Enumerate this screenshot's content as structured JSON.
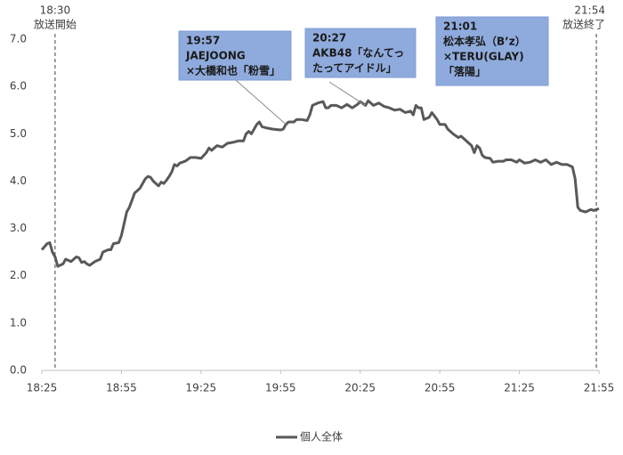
{
  "chart_data": {
    "type": "line",
    "x": [
      "18:25",
      "18:27",
      "18:28",
      "18:29",
      "18:30",
      "18:31",
      "18:33",
      "18:34",
      "18:36",
      "18:38",
      "18:39",
      "18:40",
      "18:41",
      "18:42",
      "18:43",
      "18:45",
      "18:47",
      "18:48",
      "18:50",
      "18:51",
      "18:52",
      "18:54",
      "18:55",
      "18:56",
      "18:57",
      "18:58",
      "18:59",
      "19:00",
      "19:01",
      "19:02",
      "19:04",
      "19:05",
      "19:06",
      "19:07",
      "19:08",
      "19:09",
      "19:10",
      "19:11",
      "19:12",
      "19:13",
      "19:14",
      "19:15",
      "19:16",
      "19:17",
      "19:19",
      "19:21",
      "19:23",
      "19:25",
      "19:27",
      "19:28",
      "19:29",
      "19:31",
      "19:33",
      "19:35",
      "19:37",
      "19:39",
      "19:41",
      "19:42",
      "19:43",
      "19:44",
      "19:45",
      "19:46",
      "19:47",
      "19:48",
      "19:50",
      "19:52",
      "19:55",
      "19:56",
      "19:57",
      "19:58",
      "20:00",
      "20:01",
      "20:03",
      "20:05",
      "20:06",
      "20:07",
      "20:09",
      "20:11",
      "20:12",
      "20:13",
      "20:14",
      "20:16",
      "20:18",
      "20:20",
      "20:22",
      "20:24",
      "20:25",
      "20:27",
      "20:28",
      "20:30",
      "20:32",
      "20:34",
      "20:36",
      "20:38",
      "20:40",
      "20:42",
      "20:44",
      "20:45",
      "20:46",
      "20:47",
      "20:48",
      "20:49",
      "20:51",
      "20:52",
      "20:54",
      "20:55",
      "20:57",
      "20:58",
      "21:00",
      "21:02",
      "21:03",
      "21:05",
      "21:07",
      "21:08",
      "21:09",
      "21:10",
      "21:11",
      "21:12",
      "21:14",
      "21:15",
      "21:17",
      "21:19",
      "21:20",
      "21:22",
      "21:24",
      "21:25",
      "21:27",
      "21:29",
      "21:31",
      "21:33",
      "21:35",
      "21:37",
      "21:39",
      "21:41",
      "21:43",
      "21:45",
      "21:46",
      "21:47",
      "21:48",
      "21:50",
      "21:52",
      "21:53",
      "21:55"
    ],
    "series": [
      {
        "name": "個人全体",
        "color": "#595959",
        "values": [
          2.55,
          2.68,
          2.7,
          2.5,
          2.4,
          2.2,
          2.25,
          2.35,
          2.3,
          2.4,
          2.38,
          2.28,
          2.3,
          2.25,
          2.22,
          2.3,
          2.35,
          2.5,
          2.55,
          2.55,
          2.68,
          2.7,
          2.85,
          3.1,
          3.35,
          3.45,
          3.6,
          3.75,
          3.8,
          3.85,
          4.05,
          4.1,
          4.08,
          4.0,
          3.95,
          3.9,
          3.98,
          3.95,
          4.02,
          4.1,
          4.2,
          4.35,
          4.32,
          4.38,
          4.42,
          4.5,
          4.5,
          4.48,
          4.6,
          4.7,
          4.65,
          4.75,
          4.72,
          4.8,
          4.82,
          4.85,
          4.85,
          5.0,
          5.05,
          5.0,
          5.1,
          5.2,
          5.25,
          5.15,
          5.12,
          5.1,
          5.08,
          5.1,
          5.2,
          5.25,
          5.25,
          5.3,
          5.3,
          5.28,
          5.4,
          5.6,
          5.65,
          5.68,
          5.55,
          5.55,
          5.6,
          5.6,
          5.55,
          5.62,
          5.55,
          5.62,
          5.68,
          5.6,
          5.7,
          5.6,
          5.65,
          5.58,
          5.55,
          5.5,
          5.52,
          5.45,
          5.48,
          5.4,
          5.6,
          5.55,
          5.55,
          5.3,
          5.35,
          5.45,
          5.3,
          5.2,
          5.2,
          5.1,
          5.0,
          4.92,
          4.95,
          4.85,
          4.75,
          4.6,
          4.75,
          4.7,
          4.55,
          4.5,
          4.48,
          4.4,
          4.42,
          4.42,
          4.45,
          4.45,
          4.4,
          4.45,
          4.38,
          4.4,
          4.45,
          4.4,
          4.45,
          4.35,
          4.4,
          4.35,
          4.35,
          4.3,
          4.05,
          3.45,
          3.38,
          3.35,
          3.4,
          3.38,
          3.42
        ]
      }
    ],
    "xlim": [
      "18:25",
      "21:55"
    ],
    "xticks": [
      "18:25",
      "18:55",
      "19:25",
      "19:55",
      "20:25",
      "20:55",
      "21:25",
      "21:55"
    ],
    "ylim": [
      0,
      7
    ],
    "yticks": [
      {
        "value": 0,
        "label": "0.0"
      },
      {
        "value": 1,
        "label": "1.0"
      },
      {
        "value": 2,
        "label": "2.0"
      },
      {
        "value": 3,
        "label": "3.0"
      },
      {
        "value": 4,
        "label": "4.0"
      },
      {
        "value": 5,
        "label": "5.0"
      },
      {
        "value": 6,
        "label": "6.0"
      },
      {
        "value": 7,
        "label": "7.0"
      }
    ],
    "markers": [
      {
        "time": "18:30",
        "label": "放送開始"
      },
      {
        "time": "21:54",
        "label": "放送終了"
      }
    ],
    "callouts": [
      {
        "time": "19:57",
        "lines": [
          "JAEJOONG",
          "×大橋和也「粉雪」"
        ]
      },
      {
        "time": "20:27",
        "lines": [
          "AKB48「なんてっ",
          "たってアイドル」"
        ]
      },
      {
        "time": "21:01",
        "lines": [
          "松本孝弘（B’z）",
          "×TERU(GLAY)",
          "「落陽」"
        ]
      }
    ],
    "legend": "bottom"
  }
}
